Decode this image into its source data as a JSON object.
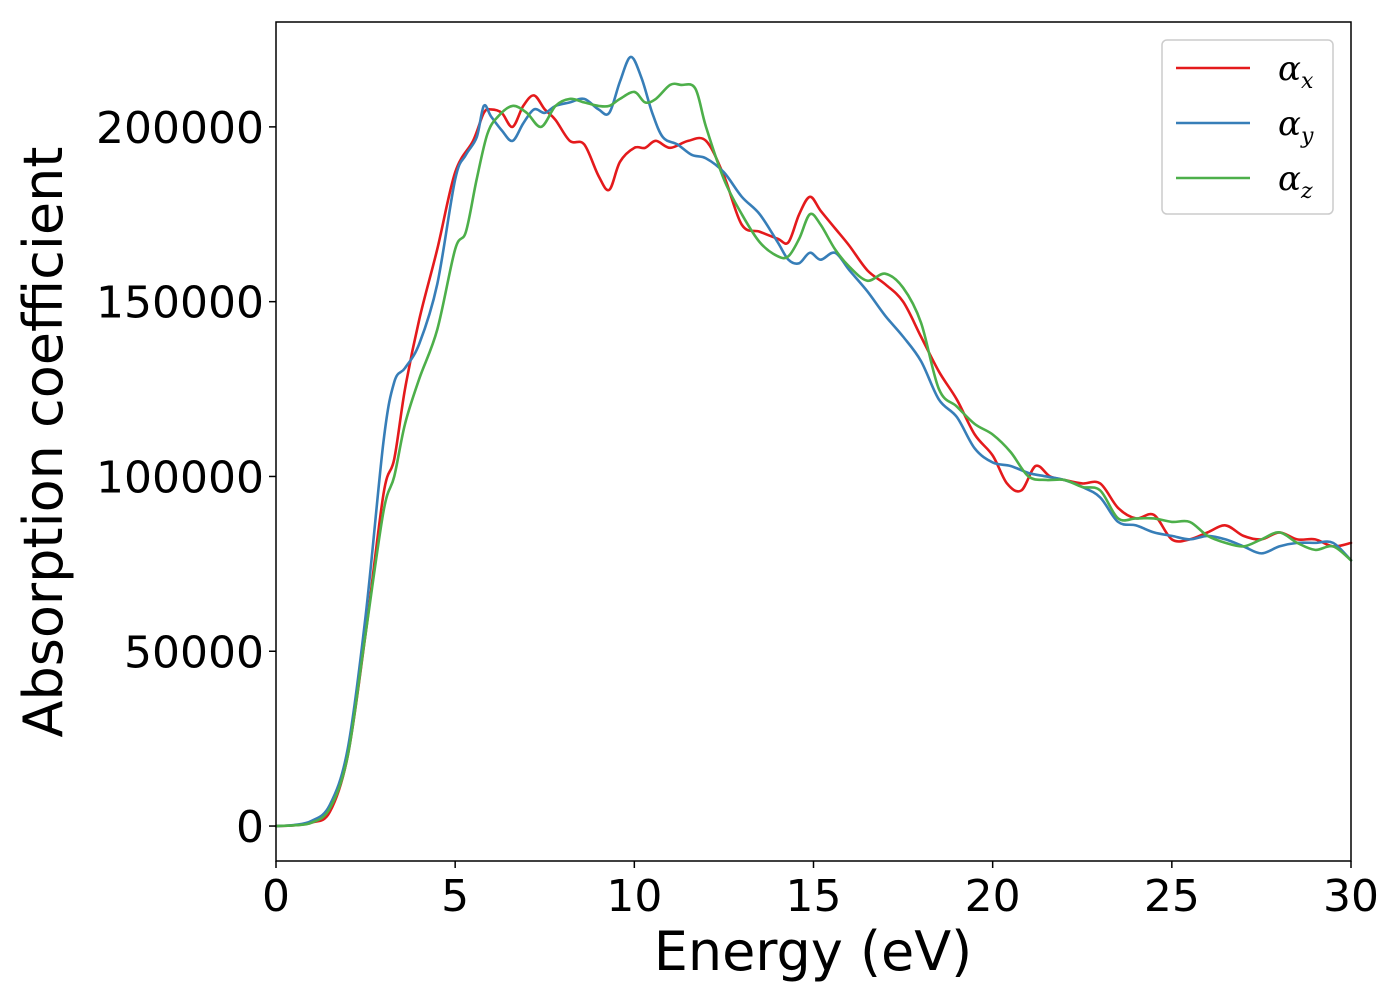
{
  "chart_data": {
    "type": "line",
    "title": "",
    "xlabel": "Energy (eV)",
    "ylabel": "Absorption coefficient",
    "xlim": [
      0,
      30
    ],
    "ylim": [
      -10000,
      230000
    ],
    "xticks": [
      0,
      5,
      10,
      15,
      20,
      25,
      30
    ],
    "yticks": [
      0,
      50000,
      100000,
      150000,
      200000
    ],
    "grid": false,
    "legend_position": "top-right",
    "series": [
      {
        "name": "α",
        "subscript": "x",
        "color": "#e41a1c",
        "x": [
          0,
          0.5,
          1.0,
          1.5,
          2.0,
          2.5,
          3.0,
          3.3,
          3.6,
          4.0,
          4.5,
          5.0,
          5.5,
          5.8,
          6.0,
          6.3,
          6.6,
          6.9,
          7.2,
          7.5,
          7.8,
          8.2,
          8.6,
          9.0,
          9.3,
          9.6,
          10.0,
          10.3,
          10.6,
          11.0,
          11.5,
          12.0,
          12.5,
          13.0,
          13.5,
          14.0,
          14.3,
          14.6,
          14.9,
          15.2,
          15.6,
          16.0,
          16.5,
          17.0,
          17.5,
          18.0,
          18.5,
          19.0,
          19.5,
          20.0,
          20.4,
          20.8,
          21.2,
          21.6,
          22.0,
          22.5,
          23.0,
          23.5,
          24.0,
          24.5,
          25.0,
          25.5,
          26.0,
          26.5,
          27.0,
          27.5,
          28.0,
          28.5,
          29.0,
          29.5,
          30.0
        ],
        "y": [
          0,
          200,
          1000,
          4000,
          20000,
          55000,
          95000,
          105000,
          125000,
          145000,
          165000,
          187000,
          196000,
          204000,
          205000,
          204000,
          200000,
          206000,
          209000,
          205000,
          202000,
          196000,
          195000,
          186000,
          182000,
          190000,
          194000,
          194000,
          196000,
          194000,
          196000,
          196000,
          186000,
          172000,
          170000,
          168000,
          167000,
          175000,
          180000,
          176000,
          171000,
          166000,
          159000,
          155000,
          150000,
          140000,
          130000,
          122000,
          112000,
          106000,
          98000,
          96000,
          103000,
          100000,
          99000,
          98000,
          98000,
          91000,
          88000,
          89000,
          82000,
          82000,
          84000,
          86000,
          83000,
          82000,
          84000,
          82000,
          82000,
          80000,
          81000
        ]
      },
      {
        "name": "α",
        "subscript": "y",
        "color": "#377eb8",
        "x": [
          0,
          0.5,
          1.0,
          1.5,
          2.0,
          2.5,
          3.0,
          3.3,
          3.6,
          4.0,
          4.5,
          5.0,
          5.3,
          5.6,
          5.8,
          6.0,
          6.3,
          6.6,
          6.9,
          7.2,
          7.5,
          7.8,
          8.2,
          8.6,
          9.0,
          9.3,
          9.6,
          9.9,
          10.2,
          10.5,
          10.8,
          11.2,
          11.6,
          12.0,
          12.5,
          13.0,
          13.5,
          14.0,
          14.3,
          14.6,
          14.9,
          15.2,
          15.6,
          16.0,
          16.5,
          17.0,
          17.5,
          18.0,
          18.5,
          19.0,
          19.5,
          20.0,
          20.5,
          21.0,
          21.5,
          22.0,
          22.5,
          23.0,
          23.5,
          24.0,
          24.5,
          25.0,
          25.5,
          26.0,
          26.5,
          27.0,
          27.5,
          28.0,
          28.5,
          29.0,
          29.5,
          30.0
        ],
        "y": [
          0,
          300,
          1500,
          6000,
          22000,
          60000,
          110000,
          127000,
          131000,
          138000,
          155000,
          185000,
          192000,
          197000,
          206000,
          203000,
          199000,
          196000,
          201000,
          205000,
          204000,
          206000,
          207000,
          208000,
          205000,
          204000,
          213000,
          220000,
          214000,
          204000,
          197000,
          195000,
          192000,
          191000,
          187000,
          180000,
          175000,
          167000,
          162000,
          161000,
          164000,
          162000,
          164000,
          159000,
          153000,
          146000,
          140000,
          133000,
          122000,
          117000,
          108000,
          104000,
          103000,
          101000,
          100000,
          99000,
          97000,
          94000,
          87000,
          86000,
          84000,
          83000,
          82000,
          83000,
          82000,
          80000,
          78000,
          80000,
          81000,
          81000,
          81000,
          76000
        ]
      },
      {
        "name": "α",
        "subscript": "z",
        "color": "#4daf4a",
        "x": [
          0,
          0.5,
          1.0,
          1.5,
          2.0,
          2.5,
          3.0,
          3.3,
          3.6,
          4.0,
          4.5,
          5.0,
          5.3,
          5.6,
          5.9,
          6.2,
          6.6,
          7.0,
          7.4,
          7.8,
          8.2,
          8.6,
          9.0,
          9.3,
          9.6,
          10.0,
          10.3,
          10.6,
          11.0,
          11.3,
          11.7,
          12.0,
          12.5,
          13.0,
          13.5,
          14.0,
          14.3,
          14.6,
          14.9,
          15.2,
          15.6,
          16.0,
          16.5,
          17.0,
          17.5,
          18.0,
          18.5,
          19.0,
          19.5,
          20.0,
          20.5,
          21.0,
          21.5,
          22.0,
          22.5,
          23.0,
          23.5,
          24.0,
          24.5,
          25.0,
          25.5,
          26.0,
          26.5,
          27.0,
          27.5,
          28.0,
          28.5,
          29.0,
          29.5,
          30.0
        ],
        "y": [
          0,
          200,
          1000,
          5000,
          20000,
          55000,
          90000,
          100000,
          115000,
          128000,
          142000,
          165000,
          170000,
          185000,
          198000,
          203000,
          206000,
          204000,
          200000,
          206000,
          208000,
          207000,
          206000,
          206000,
          208000,
          210000,
          207000,
          208000,
          212000,
          212000,
          211000,
          200000,
          185000,
          175000,
          167000,
          163000,
          163000,
          168000,
          175000,
          172000,
          165000,
          160000,
          156000,
          158000,
          154000,
          144000,
          125000,
          120000,
          115000,
          112000,
          107000,
          100000,
          99000,
          99000,
          97000,
          96000,
          88000,
          88000,
          88000,
          87000,
          87000,
          83000,
          81000,
          80000,
          82000,
          84000,
          81000,
          79000,
          80000,
          76000
        ]
      }
    ]
  }
}
